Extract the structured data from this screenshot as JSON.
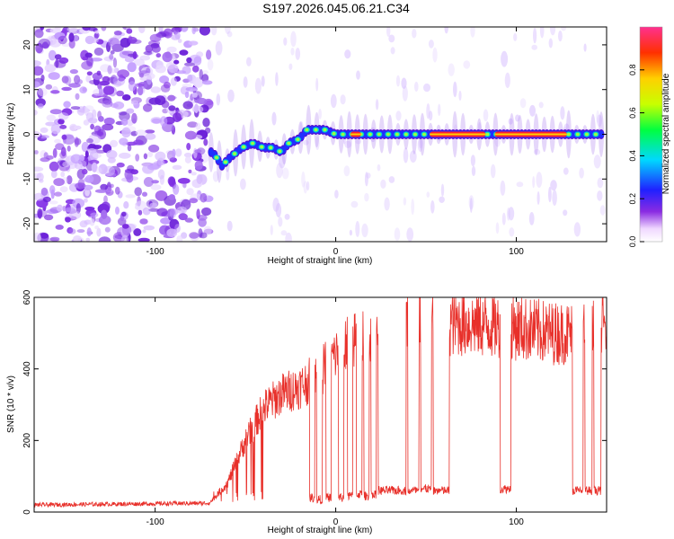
{
  "title": "S197.2026.045.06.21.C34",
  "chart_data": [
    {
      "type": "heatmap",
      "name": "spectrogram",
      "xlabel": "Height of straight line (km)",
      "ylabel": "Frequency (Hz)",
      "xlim": [
        -167,
        150
      ],
      "ylim": [
        -24,
        24
      ],
      "xticks": [
        -100,
        0,
        100
      ],
      "xtick_labels": [
        "-100",
        "0",
        "100"
      ],
      "yticks": [
        20,
        10,
        0,
        -10,
        -20
      ],
      "ytick_labels": [
        "20",
        "10",
        "0",
        "-10",
        "-20"
      ],
      "noise_region_xmax": -70,
      "ridge": {
        "x": [
          -68,
          -63,
          -58,
          -52,
          -46,
          -40,
          -35,
          -30,
          -26,
          -20,
          -16,
          -12,
          -6,
          0,
          10,
          20,
          30,
          40,
          45,
          50,
          85,
          130,
          150
        ],
        "y": [
          -4,
          -7,
          -5,
          -3,
          -2,
          -3,
          -3,
          -4,
          -2,
          -1,
          1,
          1,
          1,
          0,
          0,
          0,
          0,
          0,
          0,
          0,
          0,
          0,
          0
        ]
      },
      "colorbar": {
        "label": "Normalized spectral amplitude",
        "ticks": [
          0.0,
          0.2,
          0.4,
          0.6,
          0.8
        ],
        "tick_labels": [
          "0.0",
          "0.2",
          "0.4",
          "0.6",
          "0.8"
        ],
        "range": [
          0,
          1
        ]
      }
    },
    {
      "type": "line",
      "name": "snr",
      "xlabel": "Height of straight line (km)",
      "ylabel": "SNR (10 * v/v)",
      "xlim": [
        -167,
        150
      ],
      "ylim": [
        0,
        600
      ],
      "xticks": [
        -100,
        0,
        100
      ],
      "xtick_labels": [
        "-100",
        "0",
        "100"
      ],
      "yticks": [
        0,
        200,
        400,
        600
      ],
      "ytick_labels": [
        "0",
        "200",
        "400",
        "600"
      ],
      "color": "#e8302a",
      "envelope": {
        "x": [
          -167,
          -70,
          -60,
          -50,
          -40,
          -30,
          -20,
          -10,
          0,
          10,
          20,
          30,
          40,
          50,
          60,
          80,
          100,
          120,
          140,
          150
        ],
        "y": [
          20,
          25,
          80,
          200,
          290,
          330,
          350,
          380,
          440,
          480,
          510,
          530,
          540,
          545,
          530,
          525,
          515,
          500,
          500,
          520
        ]
      },
      "dropouts": {
        "x": [
          -13,
          -9,
          -4,
          3,
          8,
          13,
          17,
          21,
          26,
          31,
          36,
          43,
          50,
          57,
          60,
          94,
          134,
          140,
          145
        ],
        "width": [
          1.5,
          1.5,
          1.5,
          1.5,
          1.5,
          1.5,
          1.5,
          1.5,
          2.5,
          3,
          3,
          3,
          3,
          3,
          3,
          3,
          3,
          2,
          2
        ],
        "value": [
          40,
          35,
          40,
          40,
          45,
          50,
          45,
          50,
          60,
          60,
          60,
          60,
          65,
          60,
          60,
          65,
          60,
          60,
          60
        ]
      }
    }
  ]
}
